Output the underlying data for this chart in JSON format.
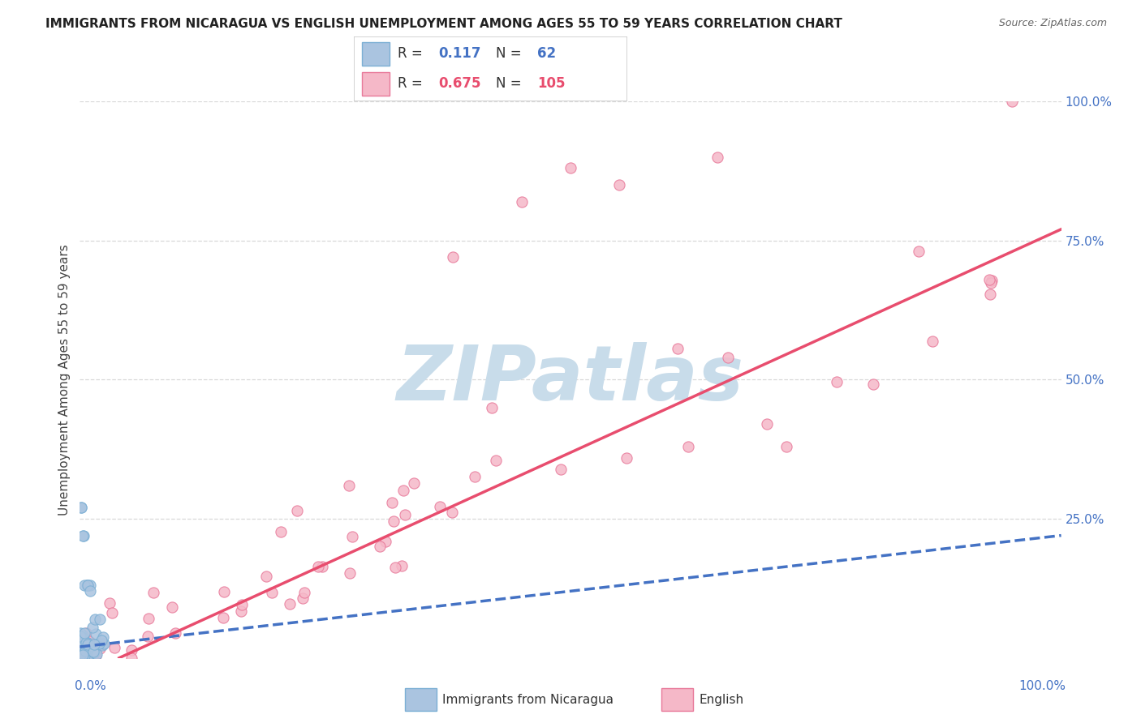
{
  "title": "IMMIGRANTS FROM NICARAGUA VS ENGLISH UNEMPLOYMENT AMONG AGES 55 TO 59 YEARS CORRELATION CHART",
  "source": "Source: ZipAtlas.com",
  "ylabel": "Unemployment Among Ages 55 to 59 years",
  "right_yticks": [
    "100.0%",
    "75.0%",
    "50.0%",
    "25.0%"
  ],
  "right_ytick_vals": [
    1.0,
    0.75,
    0.5,
    0.25
  ],
  "legend_entries": [
    {
      "label": "Immigrants from Nicaragua",
      "R": "0.117",
      "N": "62",
      "dot_color": "#aac4e0",
      "edge_color": "#7bafd4",
      "line_color": "#4472c4",
      "line_style": "dashed",
      "R_color": "#4472c4",
      "N_color": "#4472c4"
    },
    {
      "label": "English",
      "R": "0.675",
      "N": "105",
      "dot_color": "#f5b8c8",
      "edge_color": "#e8799a",
      "line_color": "#e84d6e",
      "line_style": "solid",
      "R_color": "#e84d6e",
      "N_color": "#e84d6e"
    }
  ],
  "watermark_text": "ZIPatlas",
  "watermark_color": "#c8dcea",
  "background_color": "#ffffff",
  "grid_color": "#d8d8d8",
  "xmin": 0.0,
  "xmax": 1.0,
  "ymin": 0.0,
  "ymax": 1.0,
  "title_fontsize": 11,
  "axis_label_fontsize": 11,
  "tick_fontsize": 11
}
